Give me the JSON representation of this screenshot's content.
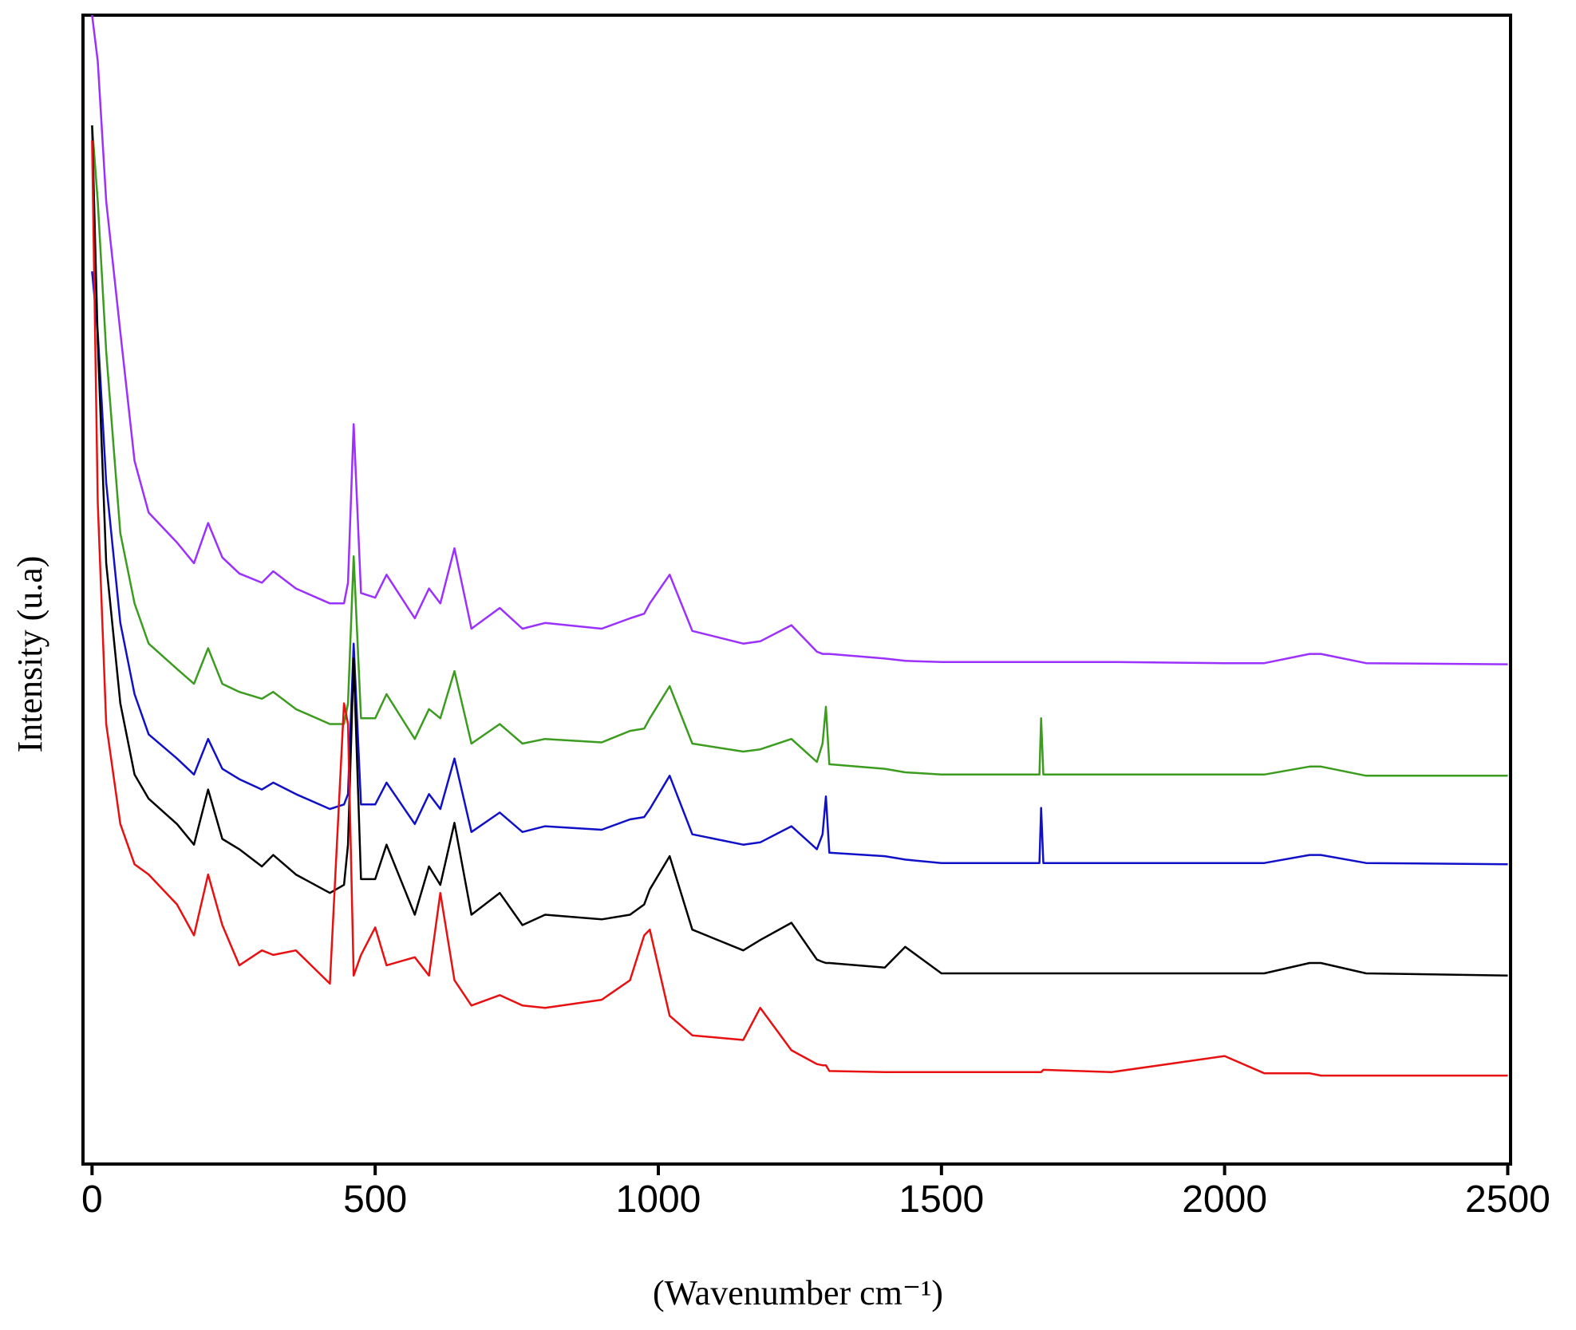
{
  "chart_data": {
    "type": "line",
    "xlabel": "(Wavenumber cm⁻¹)",
    "ylabel": "Intensity (u.a)",
    "xlim": [
      -16,
      2505
    ],
    "ylim": [
      0,
      100
    ],
    "xticks": [
      0,
      500,
      1000,
      1500,
      2000,
      2500
    ],
    "x": [
      0,
      10,
      25,
      50,
      75,
      100,
      150,
      180,
      205,
      230,
      260,
      300,
      320,
      360,
      420,
      445,
      452,
      462,
      475,
      500,
      520,
      570,
      595,
      615,
      640,
      670,
      720,
      760,
      800,
      900,
      950,
      975,
      985,
      1020,
      1060,
      1150,
      1180,
      1235,
      1280,
      1290,
      1296,
      1302,
      1400,
      1436,
      1500,
      1673,
      1676,
      1680,
      1800,
      2000,
      2070,
      2150,
      2170,
      2250,
      2500
    ],
    "series": [
      {
        "color": "#9b30ff",
        "values": [
          100,
          96,
          83.8,
          72.4,
          61.2,
          56.7,
          54.1,
          52.3,
          55.8,
          52.8,
          51.4,
          50.6,
          51.6,
          50.1,
          48.8,
          48.8,
          50.6,
          64.4,
          49.7,
          49.3,
          51.3,
          47.5,
          50.1,
          48.8,
          53.6,
          46.6,
          48.4,
          46.6,
          47.1,
          46.6,
          47.5,
          47.9,
          48.8,
          51.3,
          46.4,
          45.3,
          45.5,
          46.9,
          44.6,
          44.4,
          44.4,
          44.4,
          44.0,
          43.8,
          43.7,
          43.7,
          43.7,
          43.7,
          43.7,
          43.6,
          43.6,
          44.4,
          44.4,
          43.6,
          43.5
        ]
      },
      {
        "color": "#3c9c1f",
        "values": [
          90.4,
          83.8,
          70.7,
          54.9,
          48.8,
          45.3,
          43.1,
          41.8,
          44.9,
          41.8,
          41.1,
          40.5,
          41.1,
          39.6,
          38.3,
          38.3,
          40.1,
          52.9,
          38.8,
          38.8,
          40.9,
          37.0,
          39.6,
          38.8,
          42.9,
          36.6,
          38.3,
          36.6,
          37.0,
          36.7,
          37.7,
          37.9,
          38.8,
          41.6,
          36.6,
          35.9,
          36.1,
          37.0,
          35.0,
          36.6,
          39.8,
          34.8,
          34.4,
          34.1,
          33.9,
          33.9,
          38.8,
          33.9,
          33.9,
          33.9,
          33.9,
          34.6,
          34.6,
          33.8,
          33.8
        ]
      },
      {
        "color": "#1010c8",
        "values": [
          77.7,
          72.4,
          59.3,
          47.1,
          40.9,
          37.4,
          35.3,
          33.9,
          37.0,
          34.4,
          33.5,
          32.6,
          33.2,
          32.2,
          30.9,
          31.3,
          32.2,
          45.3,
          31.3,
          31.3,
          33.2,
          29.6,
          32.2,
          30.9,
          35.3,
          28.9,
          30.6,
          28.9,
          29.4,
          29.1,
          30.0,
          30.2,
          30.9,
          33.8,
          28.7,
          27.8,
          28.0,
          29.4,
          27.4,
          28.7,
          32.0,
          27.1,
          26.8,
          26.5,
          26.2,
          26.2,
          31.0,
          26.2,
          26.2,
          26.2,
          26.2,
          26.9,
          26.9,
          26.2,
          26.1
        ]
      },
      {
        "color": "#000000",
        "values": [
          90.4,
          71.6,
          52.3,
          40.1,
          33.9,
          31.8,
          29.6,
          27.8,
          32.6,
          28.3,
          27.4,
          25.9,
          26.9,
          25.2,
          23.6,
          24.3,
          27.8,
          44.0,
          24.8,
          24.8,
          27.8,
          21.7,
          25.9,
          24.3,
          29.7,
          21.7,
          23.6,
          20.8,
          21.7,
          21.3,
          21.7,
          22.6,
          23.9,
          26.8,
          20.4,
          18.6,
          19.5,
          21.0,
          17.8,
          17.6,
          17.5,
          17.5,
          17.1,
          18.9,
          16.6,
          16.6,
          16.6,
          16.6,
          16.6,
          16.6,
          16.6,
          17.5,
          17.5,
          16.6,
          16.4
        ]
      },
      {
        "color": "#e81010",
        "values": [
          89.1,
          57.6,
          38.3,
          29.6,
          26.1,
          25.2,
          22.6,
          19.9,
          25.2,
          20.8,
          17.3,
          18.6,
          18.2,
          18.6,
          15.7,
          40.1,
          38.3,
          16.4,
          18.2,
          20.6,
          17.3,
          18.0,
          16.4,
          23.6,
          16.0,
          13.8,
          14.7,
          13.8,
          13.6,
          14.3,
          16.0,
          19.9,
          20.4,
          12.9,
          11.2,
          10.8,
          13.6,
          9.9,
          8.7,
          8.6,
          8.6,
          8.1,
          8.0,
          8.0,
          8.0,
          8.0,
          8.0,
          8.2,
          8.0,
          9.4,
          7.9,
          7.9,
          7.7,
          7.7,
          7.7
        ]
      }
    ]
  }
}
